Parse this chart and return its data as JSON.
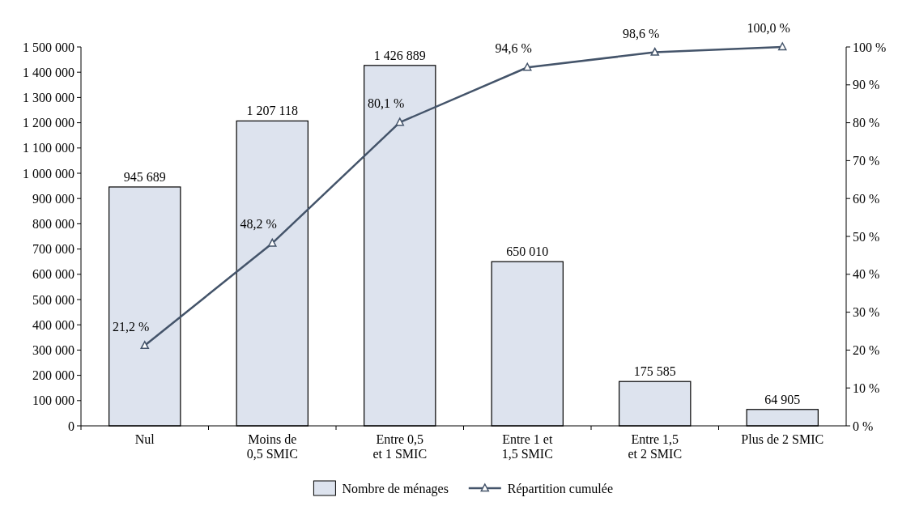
{
  "chart_data": {
    "type": "bar",
    "categories": [
      "Nul",
      "Moins de\n0,5 SMIC",
      "Entre 0,5\net 1 SMIC",
      "Entre 1 et\n1,5 SMIC",
      "Entre 1,5\net 2 SMIC",
      "Plus de 2 SMIC"
    ],
    "series": [
      {
        "name": "Nombre de ménages",
        "color": "#dde3ee",
        "values": [
          945689,
          1207118,
          1426889,
          650010,
          175585,
          64905
        ],
        "value_labels": [
          "945 689",
          "1 207 118",
          "1 426 889",
          "650 010",
          "175 585",
          "64 905"
        ]
      },
      {
        "name": "Répartition cumulée",
        "type": "line",
        "axis": "y2",
        "color": "#44546a",
        "marker": "triangle",
        "values": [
          21.2,
          48.2,
          80.1,
          94.6,
          98.6,
          100.0
        ],
        "value_labels": [
          "21,2 %",
          "48,2 %",
          "80,1 %",
          "94,6 %",
          "98,6 %",
          "100,0 %"
        ]
      }
    ],
    "ylim": [
      0,
      1500000
    ],
    "yticks": [
      0,
      {
        "value": 100000,
        "label": "100 000"
      },
      {
        "value": 200000,
        "label": "200 000"
      },
      {
        "value": 300000,
        "label": "300 000"
      },
      {
        "value": 400000,
        "label": "400 000"
      },
      {
        "value": 500000,
        "label": "500 000"
      },
      {
        "value": 600000,
        "label": "600 000"
      },
      {
        "value": 700000,
        "label": "700 000"
      },
      {
        "value": 800000,
        "label": "800 000"
      },
      {
        "value": 900000,
        "label": "900 000"
      },
      {
        "value": 1000000,
        "label": "1 000 000"
      },
      {
        "value": 1100000,
        "label": "1 100 000"
      },
      {
        "value": 1200000,
        "label": "1 200 000"
      },
      {
        "value": 1300000,
        "label": "1 300 000"
      },
      {
        "value": 1400000,
        "label": "1 400 000"
      },
      {
        "value": 1500000,
        "label": "1 500 000"
      }
    ],
    "y2lim": [
      0,
      100
    ],
    "y2ticks": [
      {
        "value": 0,
        "label": "0 %"
      },
      {
        "value": 10,
        "label": "10 %"
      },
      {
        "value": 20,
        "label": "20 %"
      },
      {
        "value": 30,
        "label": "30 %"
      },
      {
        "value": 40,
        "label": "40 %"
      },
      {
        "value": 50,
        "label": "50 %"
      },
      {
        "value": 60,
        "label": "60 %"
      },
      {
        "value": 70,
        "label": "70 %"
      },
      {
        "value": 80,
        "label": "80 %"
      },
      {
        "value": 90,
        "label": "90 %"
      },
      {
        "value": 100,
        "label": "100 %"
      }
    ],
    "grid": false,
    "legend": "bottom",
    "line_style": "solid"
  }
}
